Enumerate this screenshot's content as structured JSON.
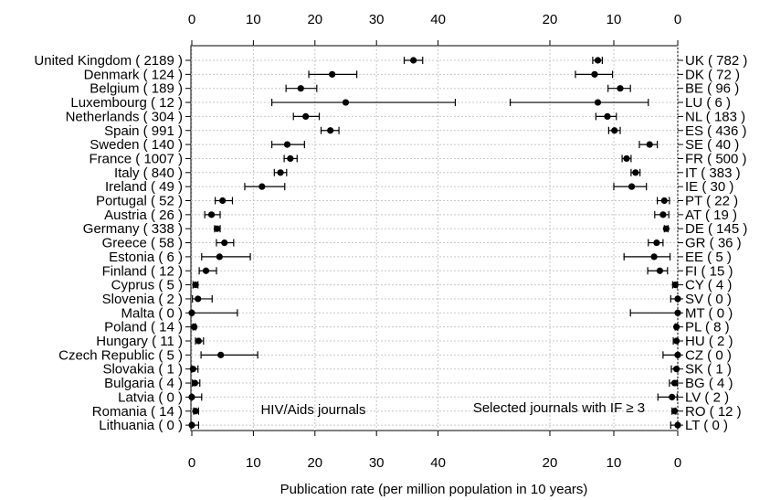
{
  "chart_data": {
    "type": "scatter",
    "xlabel": "Publication rate (per million population in 10 years)",
    "left_panel": {
      "annotation": "HIV/Aids journals",
      "xlim": [
        0,
        44
      ],
      "ticks": [
        0,
        10,
        20,
        30,
        40
      ]
    },
    "right_panel": {
      "annotation": "Selected journals with IF ≥ 3",
      "xlim": [
        0,
        27
      ],
      "ticks": [
        20,
        10,
        0
      ],
      "reversed": true
    },
    "countries": [
      {
        "left_label": "United Kingdom ( 2189 )",
        "right_label": "UK ( 782 )",
        "left": {
          "value": 36.0,
          "lo": 34.5,
          "hi": 37.5
        },
        "right": {
          "value": 12.5,
          "lo": 11.8,
          "hi": 13.3
        }
      },
      {
        "left_label": "Denmark ( 124 )",
        "right_label": "DK ( 72 )",
        "left": {
          "value": 22.8,
          "lo": 19.0,
          "hi": 26.8
        },
        "right": {
          "value": 13.0,
          "lo": 10.2,
          "hi": 16.0
        }
      },
      {
        "left_label": "Belgium ( 189 )",
        "right_label": "BE ( 96 )",
        "left": {
          "value": 17.7,
          "lo": 15.3,
          "hi": 20.3
        },
        "right": {
          "value": 9.0,
          "lo": 7.4,
          "hi": 10.9
        }
      },
      {
        "left_label": "Luxembourg ( 12 )",
        "right_label": "LU ( 6 )",
        "left": {
          "value": 25.0,
          "lo": 13.0,
          "hi": 42.8
        },
        "right": {
          "value": 12.5,
          "lo": 4.6,
          "hi": 26.2
        }
      },
      {
        "left_label": "Netherlands ( 304 )",
        "right_label": "NL ( 183 )",
        "left": {
          "value": 18.5,
          "lo": 16.5,
          "hi": 20.7
        },
        "right": {
          "value": 11.0,
          "lo": 9.6,
          "hi": 12.8
        }
      },
      {
        "left_label": "Spain ( 991 )",
        "right_label": "ES ( 436 )",
        "left": {
          "value": 22.5,
          "lo": 21.0,
          "hi": 23.9
        },
        "right": {
          "value": 9.9,
          "lo": 9.0,
          "hi": 10.8
        }
      },
      {
        "left_label": "Sweden ( 140 )",
        "right_label": "SE ( 40 )",
        "left": {
          "value": 15.5,
          "lo": 13.0,
          "hi": 18.3
        },
        "right": {
          "value": 4.4,
          "lo": 3.2,
          "hi": 6.0
        }
      },
      {
        "left_label": "France ( 1007 )",
        "right_label": "FR ( 500 )",
        "left": {
          "value": 16.0,
          "lo": 15.0,
          "hi": 17.1
        },
        "right": {
          "value": 8.0,
          "lo": 7.3,
          "hi": 8.7
        }
      },
      {
        "left_label": "Italy ( 840 )",
        "right_label": "IT ( 383 )",
        "left": {
          "value": 14.4,
          "lo": 13.4,
          "hi": 15.4
        },
        "right": {
          "value": 6.6,
          "lo": 5.9,
          "hi": 7.3
        }
      },
      {
        "left_label": "Ireland ( 49 )",
        "right_label": "IE ( 30 )",
        "left": {
          "value": 11.4,
          "lo": 8.6,
          "hi": 15.1
        },
        "right": {
          "value": 7.2,
          "lo": 4.9,
          "hi": 10.0
        }
      },
      {
        "left_label": "Portugal ( 52 )",
        "right_label": "PT ( 22 )",
        "left": {
          "value": 5.0,
          "lo": 3.8,
          "hi": 6.6
        },
        "right": {
          "value": 2.1,
          "lo": 1.3,
          "hi": 3.2
        }
      },
      {
        "left_label": "Austria ( 26 )",
        "right_label": "AT ( 19 )",
        "left": {
          "value": 3.2,
          "lo": 2.1,
          "hi": 4.6
        },
        "right": {
          "value": 2.3,
          "lo": 1.4,
          "hi": 3.6
        }
      },
      {
        "left_label": "Germany ( 338 )",
        "right_label": "DE ( 145 )",
        "left": {
          "value": 4.1,
          "lo": 3.7,
          "hi": 4.6
        },
        "right": {
          "value": 1.8,
          "lo": 1.5,
          "hi": 2.1
        }
      },
      {
        "left_label": "Greece ( 58 )",
        "right_label": "GR ( 36 )",
        "left": {
          "value": 5.3,
          "lo": 4.0,
          "hi": 6.8
        },
        "right": {
          "value": 3.3,
          "lo": 2.3,
          "hi": 4.6
        }
      },
      {
        "left_label": "Estonia ( 6 )",
        "right_label": "EE ( 5 )",
        "left": {
          "value": 4.5,
          "lo": 1.6,
          "hi": 9.5
        },
        "right": {
          "value": 3.7,
          "lo": 1.2,
          "hi": 8.4
        }
      },
      {
        "left_label": "Finland ( 12 )",
        "right_label": "FI ( 15 )",
        "left": {
          "value": 2.3,
          "lo": 1.2,
          "hi": 4.0
        },
        "right": {
          "value": 2.8,
          "lo": 1.6,
          "hi": 4.7
        }
      },
      {
        "left_label": "Cyprus ( 5 )",
        "right_label": "CY ( 4 )",
        "left": {
          "value": 0.6,
          "lo": 0.2,
          "hi": 1.0
        },
        "right": {
          "value": 0.4,
          "lo": 0.1,
          "hi": 0.8
        }
      },
      {
        "left_label": "Slovenia ( 2 )",
        "right_label": "SV ( 0 )",
        "left": {
          "value": 1.0,
          "lo": 0.1,
          "hi": 3.3
        },
        "right": {
          "value": 0.0,
          "lo": 0.0,
          "hi": 1.1
        }
      },
      {
        "left_label": "Malta ( 0 )",
        "right_label": "MT ( 0 )",
        "left": {
          "value": 0.0,
          "lo": 0.0,
          "hi": 7.4
        },
        "right": {
          "value": 0.0,
          "lo": 0.0,
          "hi": 7.4
        }
      },
      {
        "left_label": "Poland ( 14 )",
        "right_label": "PL ( 8 )",
        "left": {
          "value": 0.4,
          "lo": 0.2,
          "hi": 0.6
        },
        "right": {
          "value": 0.2,
          "lo": 0.1,
          "hi": 0.4
        }
      },
      {
        "left_label": "Hungary ( 11 )",
        "right_label": "HU ( 2 )",
        "left": {
          "value": 1.1,
          "lo": 0.6,
          "hi": 1.9
        },
        "right": {
          "value": 0.2,
          "lo": 0.0,
          "hi": 0.7
        }
      },
      {
        "left_label": "Czech Republic ( 5 )",
        "right_label": "CZ ( 0 )",
        "left": {
          "value": 4.7,
          "lo": 1.5,
          "hi": 10.7
        },
        "right": {
          "value": 0.0,
          "lo": 0.0,
          "hi": 2.3
        }
      },
      {
        "left_label": "Slovakia ( 1 )",
        "right_label": "SK ( 1 )",
        "left": {
          "value": 0.2,
          "lo": 0.0,
          "hi": 1.0
        },
        "right": {
          "value": 0.2,
          "lo": 0.0,
          "hi": 1.0
        }
      },
      {
        "left_label": "Bulgaria ( 4 )",
        "right_label": "BG ( 4 )",
        "left": {
          "value": 0.5,
          "lo": 0.1,
          "hi": 1.3
        },
        "right": {
          "value": 0.5,
          "lo": 0.1,
          "hi": 1.3
        }
      },
      {
        "left_label": "Latvia ( 0 )",
        "right_label": "LV ( 2 )",
        "left": {
          "value": 0.0,
          "lo": 0.0,
          "hi": 1.6
        },
        "right": {
          "value": 0.9,
          "lo": 0.1,
          "hi": 3.1
        }
      },
      {
        "left_label": "Romania ( 14 )",
        "right_label": "RO ( 12 )",
        "left": {
          "value": 0.6,
          "lo": 0.3,
          "hi": 1.1
        },
        "right": {
          "value": 0.5,
          "lo": 0.3,
          "hi": 0.9
        }
      },
      {
        "left_label": "Lithuania ( 0 )",
        "right_label": "LT ( 0 )",
        "left": {
          "value": 0.0,
          "lo": 0.0,
          "hi": 1.1
        },
        "right": {
          "value": 0.0,
          "lo": 0.0,
          "hi": 1.1
        }
      }
    ]
  }
}
